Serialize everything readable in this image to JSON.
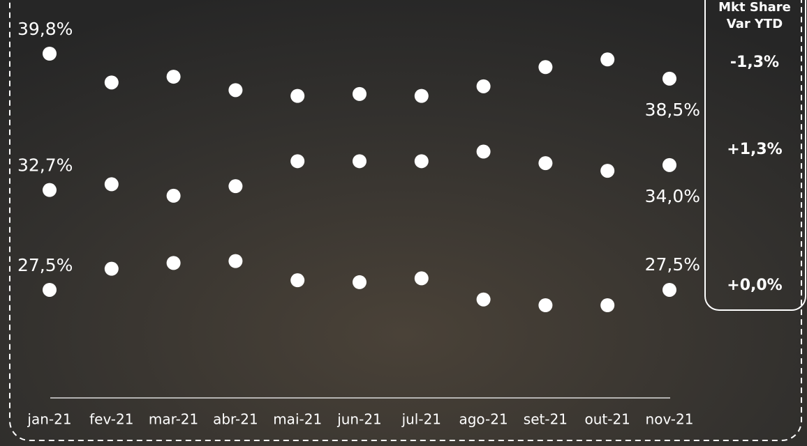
{
  "chart_data": {
    "type": "line",
    "categories": [
      "jan-21",
      "fev-21",
      "mar-21",
      "abr-21",
      "mai-21",
      "jun-21",
      "jul-21",
      "ago-21",
      "set-21",
      "out-21",
      "nov-21"
    ],
    "series": [
      {
        "color": "#0a8a3c",
        "values": [
          39.8,
          38.3,
          38.6,
          37.9,
          37.6,
          37.7,
          37.6,
          38.1,
          39.1,
          39.5,
          38.5
        ],
        "value_labels": [
          "39,8%",
          null,
          null,
          null,
          null,
          null,
          null,
          null,
          null,
          null,
          "38,5%"
        ]
      },
      {
        "color": "#7b1a7e",
        "values": [
          32.7,
          33.0,
          32.4,
          32.9,
          34.2,
          34.2,
          34.2,
          34.7,
          34.1,
          33.7,
          34.0
        ],
        "value_labels": [
          "32,7%",
          null,
          null,
          null,
          null,
          null,
          null,
          null,
          null,
          null,
          "34,0%"
        ]
      },
      {
        "color": "#f5c400",
        "values": [
          27.5,
          28.6,
          28.9,
          29.0,
          28.0,
          27.9,
          28.1,
          27.0,
          26.7,
          26.7,
          27.5
        ],
        "value_labels": [
          "27,5%",
          null,
          null,
          null,
          null,
          null,
          null,
          null,
          null,
          null,
          "27,5%"
        ]
      }
    ],
    "panel_title": [
      "Mkt Share",
      "Var YTD"
    ],
    "panel_values": [
      "-1,3%",
      "+1,3%",
      "+0,0%"
    ]
  }
}
